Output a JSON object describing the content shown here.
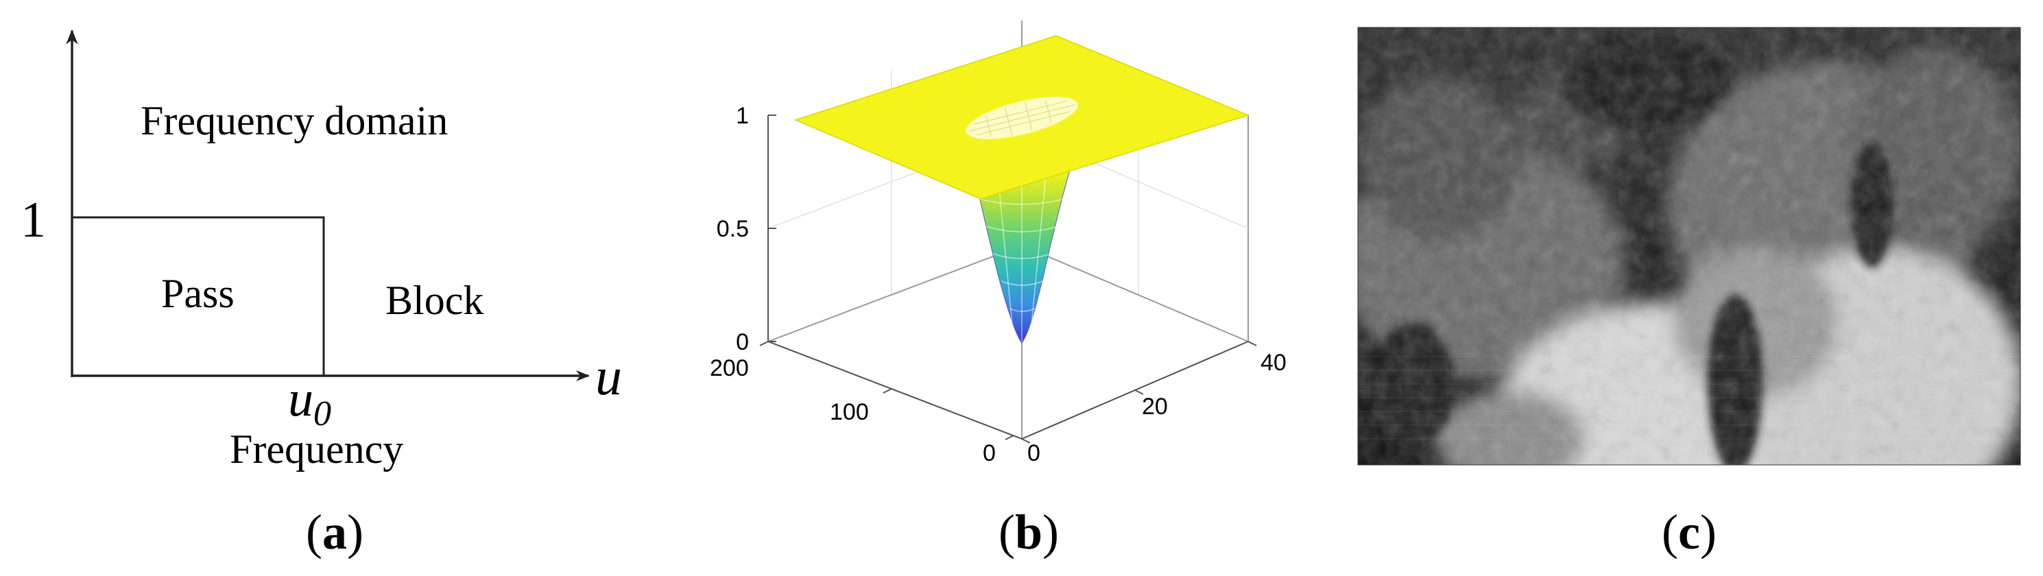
{
  "panel_a": {
    "y_tick": "1",
    "region_domain": "Frequency domain",
    "region_pass": "Pass",
    "region_block": "Block",
    "x_axis_symbol": "u",
    "cutoff_symbol": "u",
    "cutoff_subscript": "0",
    "x_axis_label": "Frequency",
    "caption_open": "(",
    "caption_letter": "a",
    "caption_close": ")"
  },
  "panel_b": {
    "z_ticks": [
      "0",
      "0.5",
      "1"
    ],
    "left_ticks": [
      "0",
      "100",
      "200"
    ],
    "right_ticks": [
      "0",
      "20",
      "40"
    ],
    "surface_colors": [
      "#f4f41c",
      "#8fd64a",
      "#35c2a0",
      "#2aa8d8",
      "#3a6fe0",
      "#3b3bd0"
    ],
    "caption_open": "(",
    "caption_letter": "b",
    "caption_close": ")"
  },
  "panel_c": {
    "caption_open": "(",
    "caption_letter": "c",
    "caption_close": ")"
  }
}
